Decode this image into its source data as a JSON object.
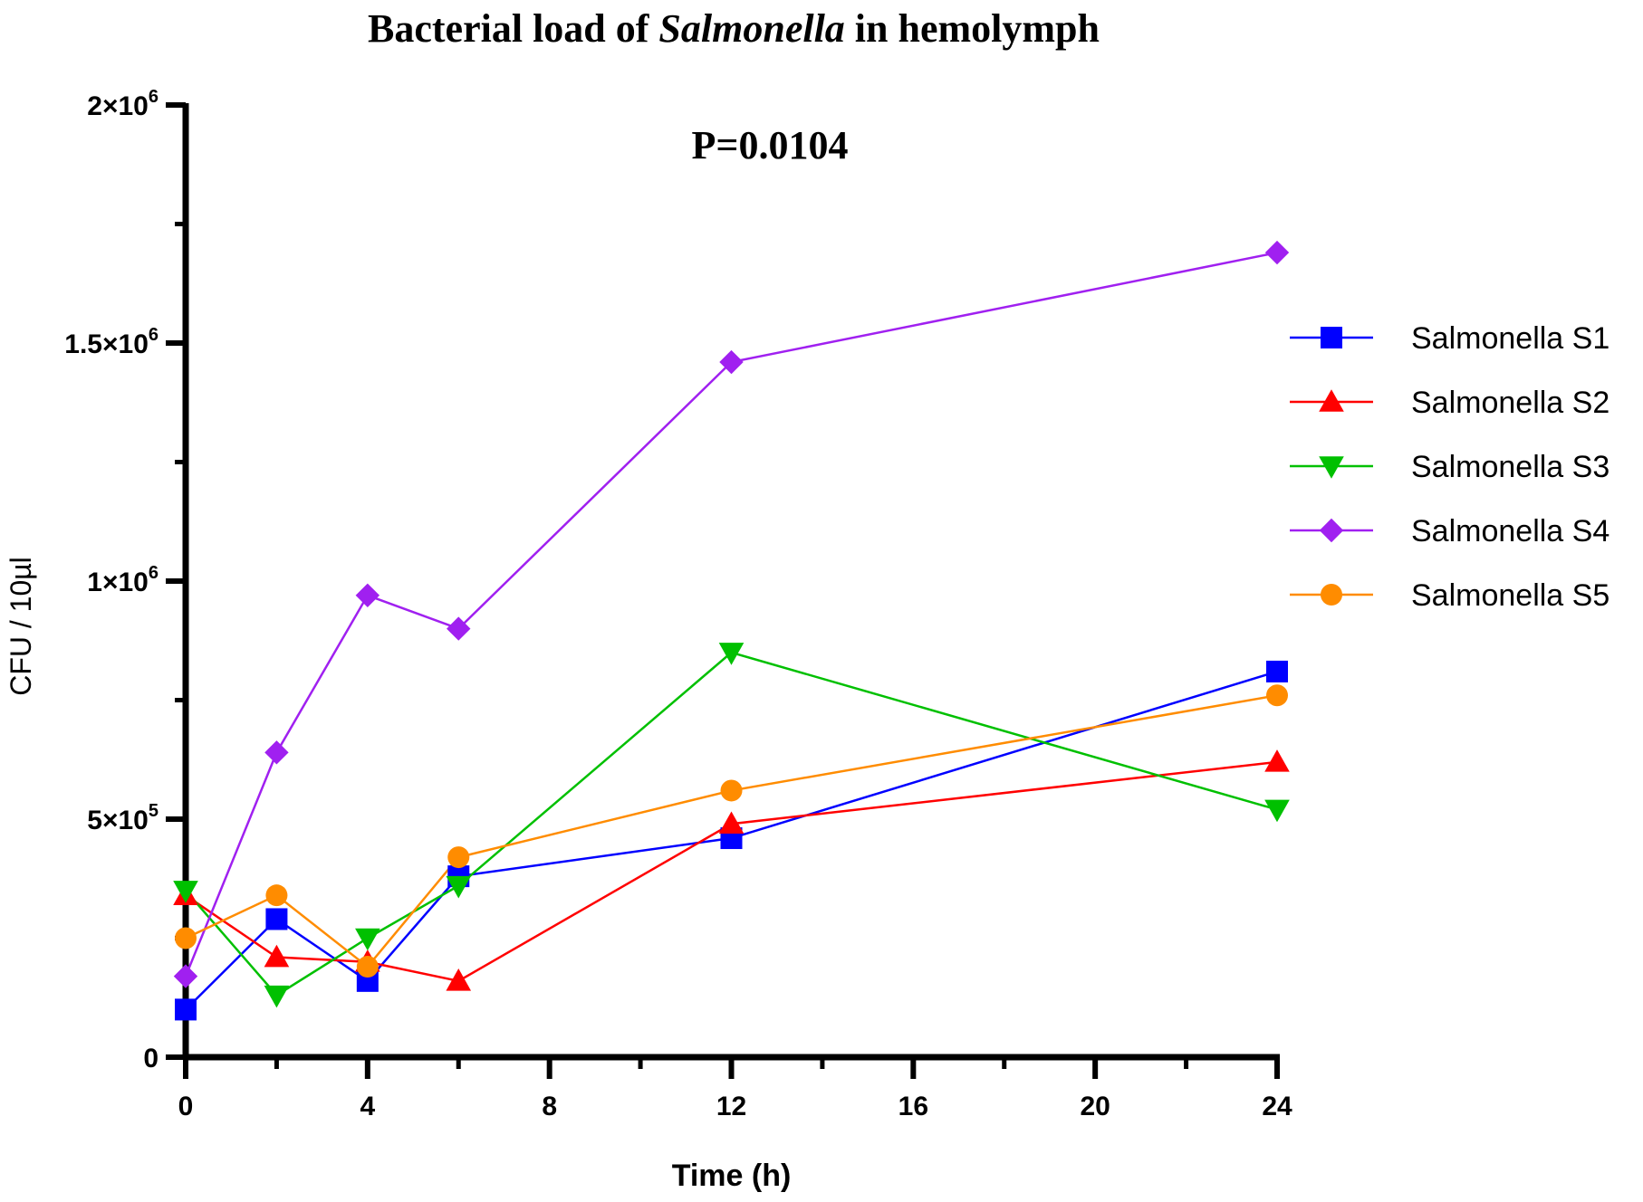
{
  "chart_data": {
    "type": "line",
    "title_prefix": "Bacterial load of ",
    "title_italic": "Salmonella",
    "title_suffix": " in hemolymph",
    "annotation": "P=0.0104",
    "xlabel": "Time (h)",
    "ylabel": "CFU / 10µl",
    "xlim": [
      0,
      24
    ],
    "ylim": [
      0,
      2000000
    ],
    "x_ticks": [
      0,
      4,
      8,
      12,
      16,
      20,
      24
    ],
    "y_ticks": [
      0,
      500000,
      1000000,
      1500000,
      2000000
    ],
    "y_tick_mantissa": [
      "0",
      "5×10",
      "1×10",
      "1.5×10",
      "2×10"
    ],
    "y_tick_exponent": [
      "",
      "5",
      "6",
      "6",
      "6"
    ],
    "x": [
      0,
      2,
      4,
      6,
      12,
      24
    ],
    "legend_position": "right",
    "series": [
      {
        "name": "Salmonella S1",
        "color": "#0000ff",
        "marker": "square",
        "values": [
          100000,
          290000,
          160000,
          380000,
          460000,
          810000
        ]
      },
      {
        "name": "Salmonella S2",
        "color": "#ff0000",
        "marker": "triangle-up",
        "values": [
          340000,
          210000,
          200000,
          160000,
          490000,
          620000
        ]
      },
      {
        "name": "Salmonella S3",
        "color": "#00c000",
        "marker": "triangle-down",
        "values": [
          350000,
          130000,
          250000,
          360000,
          850000,
          520000
        ]
      },
      {
        "name": "Salmonella S4",
        "color": "#a020f0",
        "marker": "diamond",
        "values": [
          170000,
          640000,
          970000,
          900000,
          1460000,
          1690000
        ]
      },
      {
        "name": "Salmonella S5",
        "color": "#ff8c00",
        "marker": "circle",
        "values": [
          250000,
          340000,
          190000,
          420000,
          560000,
          760000
        ]
      }
    ]
  }
}
